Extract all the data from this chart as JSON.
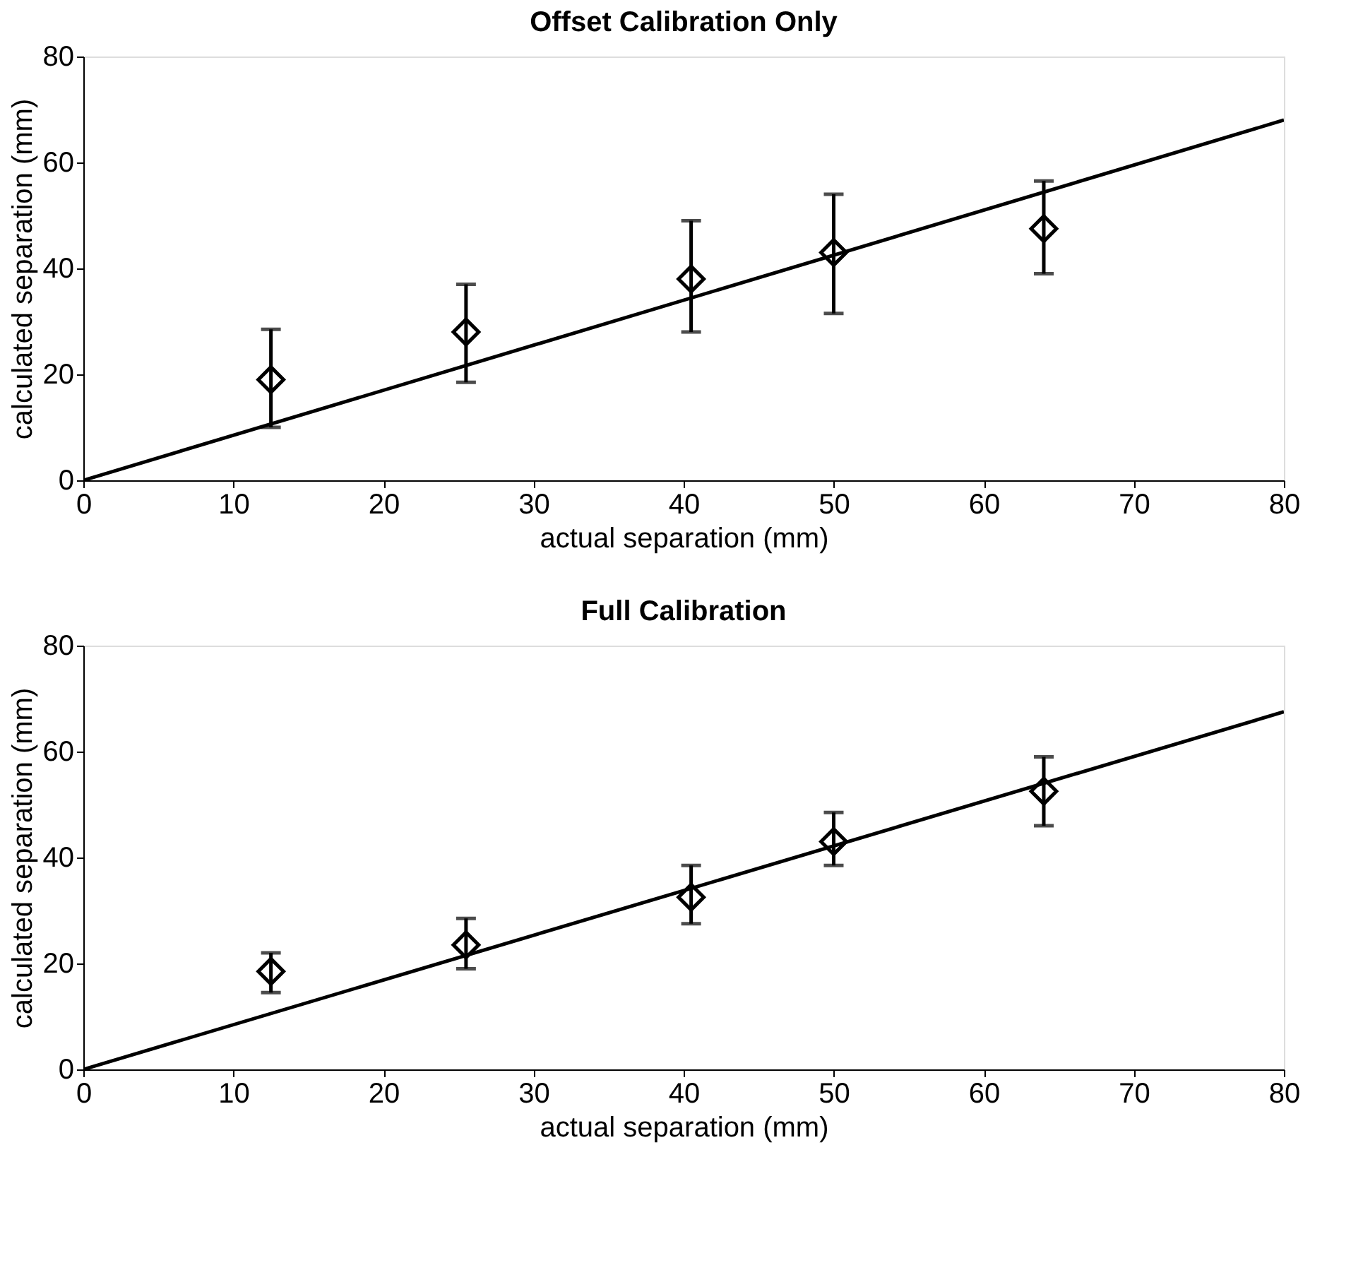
{
  "chart_data": [
    {
      "type": "scatter",
      "title": "Offset Calibration Only",
      "xlabel": "actual separation (mm)",
      "ylabel": "calculated separation (mm)",
      "xlim": [
        0,
        80
      ],
      "ylim": [
        0,
        80
      ],
      "xticks": [
        0,
        10,
        20,
        30,
        40,
        50,
        60,
        70,
        80
      ],
      "yticks": [
        0,
        20,
        40,
        60,
        80
      ],
      "grid": false,
      "series": [
        {
          "color": "#000000",
          "marker": "diamond",
          "x": [
            12.5,
            25.5,
            40.5,
            50,
            64
          ],
          "values": [
            19,
            28,
            38,
            43,
            47.5
          ],
          "errors": [
            [
              10,
              28.5
            ],
            [
              18.5,
              37
            ],
            [
              28,
              49
            ],
            [
              31.5,
              54
            ],
            [
              39,
              56.5
            ]
          ]
        },
        {
          "type": "line",
          "color": "#000000",
          "line_style": "solid",
          "x": [
            0,
            80
          ],
          "values": [
            0,
            68
          ]
        }
      ]
    },
    {
      "type": "scatter",
      "title": "Full Calibration",
      "xlabel": "actual separation (mm)",
      "ylabel": "calculated separation (mm)",
      "xlim": [
        0,
        80
      ],
      "ylim": [
        0,
        80
      ],
      "xticks": [
        0,
        10,
        20,
        30,
        40,
        50,
        60,
        70,
        80
      ],
      "yticks": [
        0,
        20,
        40,
        60,
        80
      ],
      "grid": false,
      "series": [
        {
          "color": "#000000",
          "marker": "diamond",
          "x": [
            12.5,
            25.5,
            40.5,
            50,
            64
          ],
          "values": [
            18.5,
            23.5,
            32.5,
            43,
            52.5
          ],
          "errors": [
            [
              14.5,
              22
            ],
            [
              19,
              28.5
            ],
            [
              27.5,
              38.5
            ],
            [
              38.5,
              48.5
            ],
            [
              46,
              59
            ]
          ]
        },
        {
          "type": "line",
          "color": "#000000",
          "line_style": "solid",
          "x": [
            0,
            80
          ],
          "values": [
            0,
            67.5
          ]
        }
      ]
    }
  ]
}
